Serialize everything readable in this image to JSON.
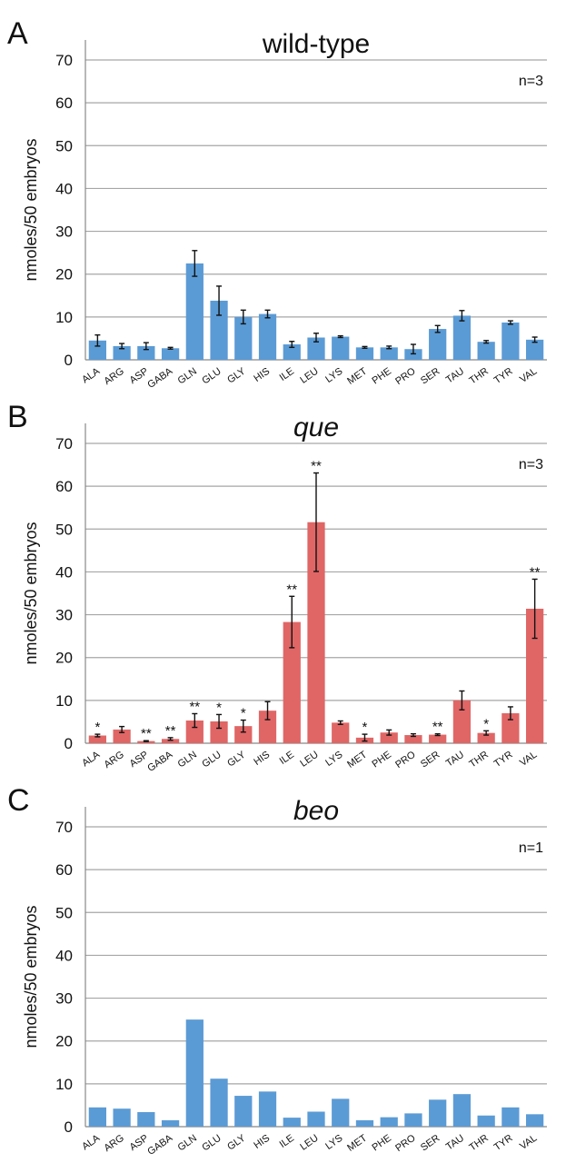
{
  "chart_data": [
    {
      "type": "bar",
      "panel": "A",
      "title": "wild-type",
      "title_style": "normal",
      "annotation": "n=3",
      "ylabel": "nmoles/50 embryos",
      "ylim": [
        0,
        70
      ],
      "yticks": [
        0,
        10,
        20,
        30,
        40,
        50,
        60,
        70
      ],
      "grid": true,
      "color": "#5b9bd5",
      "error_bars": true,
      "categories": [
        "ALA",
        "ARG",
        "ASP",
        "GABA",
        "GLN",
        "GLU",
        "GLY",
        "HIS",
        "ILE",
        "LEU",
        "LYS",
        "MET",
        "PHE",
        "PRO",
        "SER",
        "TAU",
        "THR",
        "TYR",
        "VAL"
      ],
      "values": [
        4.5,
        3.2,
        3.2,
        2.7,
        22.5,
        13.8,
        10.0,
        10.7,
        3.6,
        5.2,
        5.4,
        2.9,
        2.9,
        2.5,
        7.2,
        10.3,
        4.2,
        8.7,
        4.7
      ],
      "errors": [
        1.3,
        0.6,
        0.8,
        0.2,
        3.0,
        3.4,
        1.6,
        0.9,
        0.7,
        1.0,
        0.2,
        0.2,
        0.3,
        1.1,
        0.8,
        1.2,
        0.3,
        0.4,
        0.6
      ],
      "significance": []
    },
    {
      "type": "bar",
      "panel": "B",
      "title": "que",
      "title_style": "italic",
      "annotation": "n=3",
      "ylabel": "nmoles/50 embryos",
      "ylim": [
        0,
        70
      ],
      "yticks": [
        0,
        10,
        20,
        30,
        40,
        50,
        60,
        70
      ],
      "grid": true,
      "color": "#e06666",
      "error_bars": true,
      "categories": [
        "ALA",
        "ARG",
        "ASP",
        "GABA",
        "GLN",
        "GLU",
        "GLY",
        "HIS",
        "ILE",
        "LEU",
        "LYS",
        "MET",
        "PHE",
        "PRO",
        "SER",
        "TAU",
        "THR",
        "TYR",
        "VAL"
      ],
      "values": [
        1.8,
        3.2,
        0.5,
        1.0,
        5.3,
        5.1,
        4.0,
        7.6,
        28.3,
        51.6,
        4.8,
        1.3,
        2.5,
        1.9,
        2.0,
        10.0,
        2.4,
        7.0,
        31.4
      ],
      "errors": [
        0.3,
        0.7,
        0.1,
        0.3,
        1.6,
        1.6,
        1.4,
        2.1,
        6.0,
        11.5,
        0.4,
        0.8,
        0.6,
        0.3,
        0.2,
        2.2,
        0.5,
        1.5,
        6.9
      ],
      "significance": [
        "*",
        "",
        "**",
        "**",
        "**",
        "*",
        "*",
        "",
        "**",
        "**",
        "",
        "*",
        "",
        "",
        "**",
        "",
        "*",
        "",
        "**"
      ]
    },
    {
      "type": "bar",
      "panel": "C",
      "title": "beo",
      "title_style": "italic",
      "annotation": "n=1",
      "ylabel": "nmoles/50 embryos",
      "ylim": [
        0,
        70
      ],
      "yticks": [
        0,
        10,
        20,
        30,
        40,
        50,
        60,
        70
      ],
      "grid": true,
      "color": "#5b9bd5",
      "error_bars": false,
      "categories": [
        "ALA",
        "ARG",
        "ASP",
        "GABA",
        "GLN",
        "GLU",
        "GLY",
        "HIS",
        "ILE",
        "LEU",
        "LYS",
        "MET",
        "PHE",
        "PRO",
        "SER",
        "TAU",
        "THR",
        "TYR",
        "VAL"
      ],
      "values": [
        4.5,
        4.2,
        3.4,
        1.5,
        25.0,
        11.2,
        7.2,
        8.2,
        2.1,
        3.5,
        6.5,
        1.5,
        2.2,
        3.1,
        6.3,
        7.6,
        2.6,
        4.5,
        2.9
      ],
      "errors": [],
      "significance": []
    }
  ]
}
